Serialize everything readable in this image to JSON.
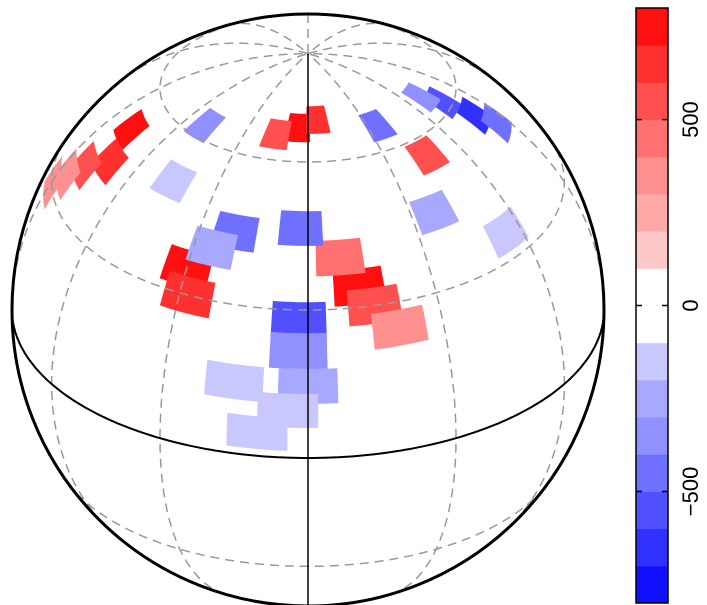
{
  "chart_data": {
    "type": "heatmap",
    "tilt": 30,
    "lat_lines": [
      -60,
      -30,
      30,
      60
    ],
    "lon_lines": [
      -150,
      -120,
      -90,
      -60,
      -30,
      30,
      60,
      90,
      120,
      150,
      180
    ],
    "zlim": [
      -800,
      800
    ],
    "zticks": [
      {
        "value": -500,
        "label": "−500"
      },
      0,
      500
    ],
    "colors": [
      "#1010ff",
      "#3030ff",
      "#5050ff",
      "#7070ff",
      "#9090ff",
      "#a8a8ff",
      "#c8c8ff",
      "#ffffff",
      "#ffffff",
      "#ffc8c8",
      "#ffa8a8",
      "#ff9090",
      "#ff7070",
      "#ff5050",
      "#ff3030",
      "#ff1010"
    ],
    "spots": [
      {
        "lon": -5,
        "lat": 68,
        "value": 700
      },
      {
        "lon": 5,
        "lat": 70,
        "value": 600
      },
      {
        "lon": -15,
        "lat": 66,
        "value": 500
      },
      {
        "lon": -77,
        "lat": 52,
        "value": 700
      },
      {
        "lon": -72,
        "lat": 45,
        "value": 600
      },
      {
        "lon": -80,
        "lat": 40,
        "value": 500
      },
      {
        "lon": -85,
        "lat": 35,
        "value": 300
      },
      {
        "lon": -30,
        "lat": 35,
        "value": 750
      },
      {
        "lon": -28,
        "lat": 30,
        "value": 600
      },
      {
        "lon": 12,
        "lat": 34,
        "value": 750
      },
      {
        "lon": 15,
        "lat": 30,
        "value": 500
      },
      {
        "lon": 20,
        "lat": 25,
        "value": 300
      },
      {
        "lon": 8,
        "lat": 40,
        "value": 400
      },
      {
        "lon": 46,
        "lat": 56,
        "value": 500
      },
      {
        "lon": -90,
        "lat": 30,
        "value": 300
      },
      {
        "lon": -2,
        "lat": 28,
        "value": -600
      },
      {
        "lon": -2,
        "lat": 22,
        "value": -400
      },
      {
        "lon": 0,
        "lat": 15,
        "value": -300
      },
      {
        "lon": -4,
        "lat": 10,
        "value": -200
      },
      {
        "lon": -2,
        "lat": 46,
        "value": -500
      },
      {
        "lon": -20,
        "lat": 44,
        "value": -500
      },
      {
        "lon": -25,
        "lat": 40,
        "value": -300
      },
      {
        "lon": 75,
        "lat": 62,
        "value": -600
      },
      {
        "lon": 80,
        "lat": 55,
        "value": -700
      },
      {
        "lon": 85,
        "lat": 50,
        "value": -500
      },
      {
        "lon": 70,
        "lat": 66,
        "value": -400
      },
      {
        "lon": 35,
        "lat": 66,
        "value": -500
      },
      {
        "lon": -50,
        "lat": 63,
        "value": -400
      },
      {
        "lon": 37,
        "lat": 45,
        "value": -300
      },
      {
        "lon": -45,
        "lat": 50,
        "value": -200
      },
      {
        "lon": 55,
        "lat": 35,
        "value": -200
      },
      {
        "lon": -15,
        "lat": 15,
        "value": -200
      },
      {
        "lon": -10,
        "lat": 5,
        "value": -150
      }
    ]
  }
}
